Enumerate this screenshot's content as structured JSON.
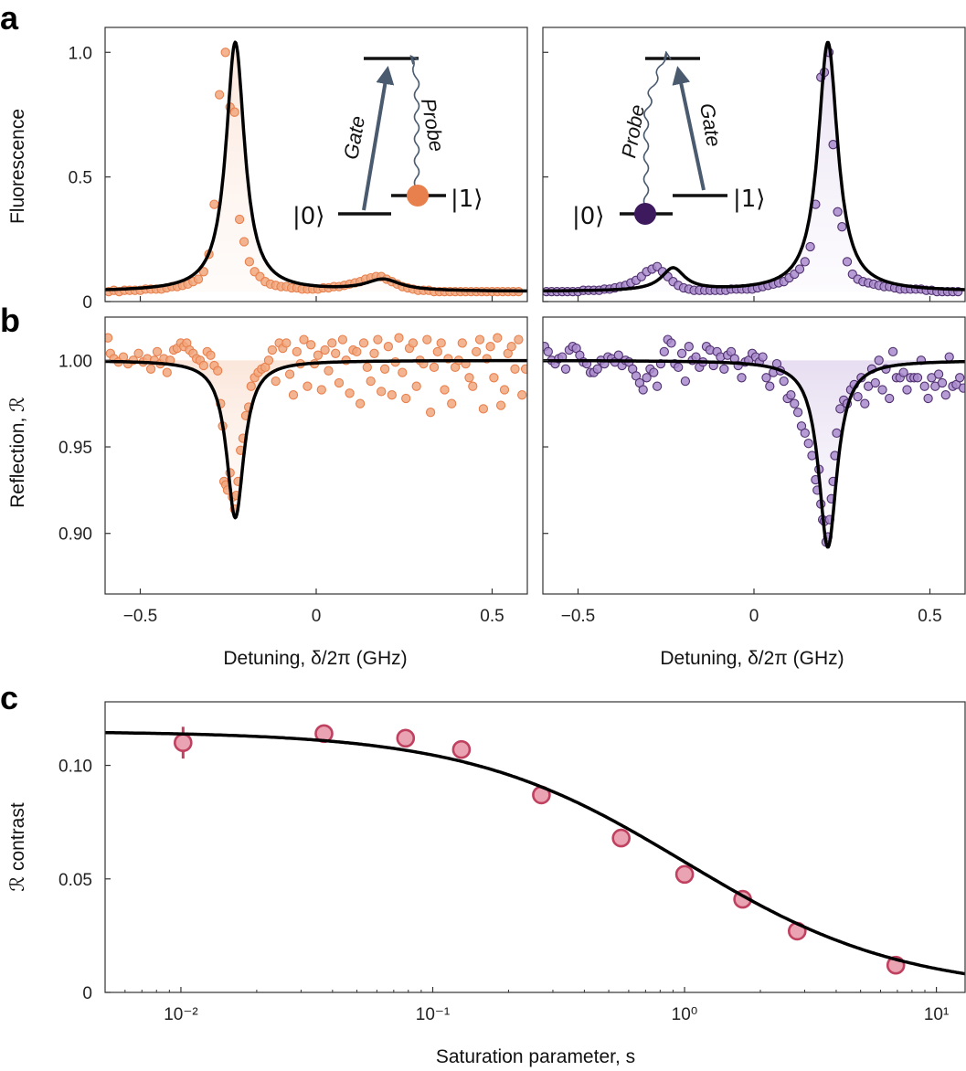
{
  "panels": {
    "a": "a",
    "b": "b",
    "c": "c"
  },
  "colors": {
    "orange": "#e8804e",
    "orange_fill": "#f1a77e",
    "purple": "#50306f",
    "purple_fill": "#a98bcc",
    "pink_edge": "#c0405f",
    "pink_fill": "#e9a3b3",
    "gate_arrow": "#4a5a6f"
  },
  "diagram_left": {
    "gate": "Gate",
    "probe": "Probe",
    "ket0": "|0⟩",
    "ket1": "|1⟩",
    "occupied": "1"
  },
  "diagram_right": {
    "gate": "Gate",
    "probe": "Probe",
    "ket0": "|0⟩",
    "ket1": "|1⟩",
    "occupied": "0"
  },
  "chart_data": [
    {
      "id": "a-left",
      "type": "scatter",
      "title": "",
      "xlabel": "",
      "ylabel": "Fluorescence",
      "xlim": [
        -0.6,
        0.6
      ],
      "ylim": [
        0,
        1.1
      ],
      "yticks": [
        0,
        0.5,
        1.0
      ],
      "ytick_labels": [
        "0",
        "0.5",
        "1.0"
      ],
      "fit": {
        "peaks": [
          {
            "x0": -0.23,
            "amp": 1.0,
            "hwhm": 0.032
          },
          {
            "x0": 0.19,
            "amp": 0.045,
            "hwhm": 0.06
          }
        ],
        "baseline": 0.04
      },
      "points": {
        "x": [
          -0.59,
          -0.575,
          -0.56,
          -0.545,
          -0.53,
          -0.515,
          -0.5,
          -0.485,
          -0.47,
          -0.455,
          -0.44,
          -0.425,
          -0.41,
          -0.395,
          -0.38,
          -0.365,
          -0.35,
          -0.335,
          -0.32,
          -0.305,
          -0.29,
          -0.275,
          -0.258,
          -0.245,
          -0.232,
          -0.218,
          -0.205,
          -0.19,
          -0.175,
          -0.16,
          -0.145,
          -0.13,
          -0.115,
          -0.1,
          -0.085,
          -0.07,
          -0.055,
          -0.04,
          -0.025,
          -0.01,
          0.005,
          0.02,
          0.035,
          0.05,
          0.065,
          0.08,
          0.095,
          0.11,
          0.125,
          0.14,
          0.155,
          0.17,
          0.185,
          0.2,
          0.215,
          0.23,
          0.245,
          0.26,
          0.275,
          0.29,
          0.305,
          0.32,
          0.335,
          0.35,
          0.365,
          0.38,
          0.395,
          0.41,
          0.425,
          0.44,
          0.455,
          0.47,
          0.485,
          0.5,
          0.515,
          0.53,
          0.545,
          0.56,
          0.575
        ],
        "y": [
          0.04,
          0.045,
          0.04,
          0.045,
          0.045,
          0.045,
          0.045,
          0.05,
          0.05,
          0.05,
          0.05,
          0.055,
          0.06,
          0.06,
          0.065,
          0.07,
          0.08,
          0.09,
          0.12,
          0.19,
          0.39,
          0.83,
          1.0,
          0.78,
          0.76,
          0.33,
          0.24,
          0.16,
          0.12,
          0.1,
          0.08,
          0.07,
          0.065,
          0.06,
          0.06,
          0.055,
          0.055,
          0.05,
          0.05,
          0.05,
          0.05,
          0.055,
          0.055,
          0.06,
          0.06,
          0.065,
          0.07,
          0.075,
          0.08,
          0.09,
          0.095,
          0.1,
          0.1,
          0.09,
          0.08,
          0.07,
          0.06,
          0.055,
          0.05,
          0.045,
          0.045,
          0.045,
          0.04,
          0.04,
          0.04,
          0.04,
          0.04,
          0.04,
          0.04,
          0.04,
          0.04,
          0.04,
          0.04,
          0.04,
          0.04,
          0.04,
          0.04,
          0.04,
          0.04
        ]
      }
    },
    {
      "id": "a-right",
      "type": "scatter",
      "title": "",
      "xlabel": "",
      "ylabel": "",
      "xlim": [
        -0.6,
        0.6
      ],
      "ylim": [
        0,
        1.1
      ],
      "yticks": [
        0,
        0.5,
        1.0
      ],
      "ytick_labels": [
        "",
        "",
        ""
      ],
      "fit": {
        "peaks": [
          {
            "x0": 0.21,
            "amp": 1.0,
            "hwhm": 0.034
          },
          {
            "x0": -0.23,
            "amp": 0.09,
            "hwhm": 0.04
          }
        ],
        "baseline": 0.04
      },
      "points": {
        "x": [
          -0.59,
          -0.575,
          -0.56,
          -0.545,
          -0.53,
          -0.515,
          -0.5,
          -0.485,
          -0.47,
          -0.455,
          -0.44,
          -0.425,
          -0.41,
          -0.395,
          -0.38,
          -0.365,
          -0.35,
          -0.335,
          -0.32,
          -0.305,
          -0.29,
          -0.275,
          -0.26,
          -0.245,
          -0.23,
          -0.215,
          -0.2,
          -0.185,
          -0.17,
          -0.155,
          -0.14,
          -0.125,
          -0.11,
          -0.095,
          -0.08,
          -0.065,
          -0.05,
          -0.035,
          -0.02,
          -0.005,
          0.01,
          0.025,
          0.04,
          0.055,
          0.07,
          0.085,
          0.1,
          0.115,
          0.13,
          0.145,
          0.16,
          0.175,
          0.19,
          0.2,
          0.213,
          0.225,
          0.238,
          0.25,
          0.265,
          0.28,
          0.295,
          0.31,
          0.325,
          0.34,
          0.355,
          0.37,
          0.385,
          0.4,
          0.415,
          0.43,
          0.445,
          0.46,
          0.475,
          0.49,
          0.505,
          0.52,
          0.535,
          0.55,
          0.565,
          0.58
        ],
        "y": [
          0.04,
          0.04,
          0.04,
          0.04,
          0.04,
          0.04,
          0.04,
          0.045,
          0.045,
          0.045,
          0.045,
          0.05,
          0.05,
          0.055,
          0.06,
          0.065,
          0.075,
          0.085,
          0.1,
          0.12,
          0.13,
          0.14,
          0.12,
          0.1,
          0.08,
          0.065,
          0.055,
          0.05,
          0.045,
          0.045,
          0.045,
          0.045,
          0.045,
          0.045,
          0.045,
          0.05,
          0.05,
          0.05,
          0.05,
          0.05,
          0.055,
          0.06,
          0.065,
          0.07,
          0.075,
          0.08,
          0.095,
          0.11,
          0.13,
          0.16,
          0.22,
          0.39,
          0.9,
          0.92,
          1.0,
          0.63,
          0.36,
          0.3,
          0.16,
          0.11,
          0.09,
          0.08,
          0.075,
          0.07,
          0.065,
          0.06,
          0.06,
          0.055,
          0.05,
          0.05,
          0.05,
          0.05,
          0.05,
          0.045,
          0.045,
          0.04,
          0.04,
          0.04,
          0.04,
          0.04
        ]
      }
    },
    {
      "id": "b-left",
      "type": "scatter",
      "title": "",
      "xlabel": "Detuning, δ/2π (GHz)",
      "ylabel": "Reflection, ℛ",
      "xlim": [
        -0.6,
        0.6
      ],
      "ylim": [
        0.865,
        1.025
      ],
      "xticks": [
        -0.5,
        0,
        0.5
      ],
      "xtick_labels": [
        "−0.5",
        "0",
        "0.5"
      ],
      "yticks": [
        0.9,
        0.95,
        1.0
      ],
      "ytick_labels": [
        "0.90",
        "0.95",
        "1.00"
      ],
      "fit": {
        "baseline": 1.0,
        "dips": [
          {
            "x0": -0.23,
            "depth": 0.091,
            "hwhm": 0.03
          }
        ]
      },
      "points": {
        "x": [
          -0.592,
          -0.585,
          -0.575,
          -0.562,
          -0.548,
          -0.535,
          -0.52,
          -0.505,
          -0.492,
          -0.48,
          -0.47,
          -0.46,
          -0.452,
          -0.443,
          -0.433,
          -0.424,
          -0.415,
          -0.405,
          -0.395,
          -0.385,
          -0.376,
          -0.368,
          -0.36,
          -0.35,
          -0.34,
          -0.33,
          -0.32,
          -0.31,
          -0.3,
          -0.29,
          -0.28,
          -0.272,
          -0.266,
          -0.262,
          -0.257,
          -0.252,
          -0.245,
          -0.238,
          -0.232,
          -0.227,
          -0.222,
          -0.215,
          -0.208,
          -0.2,
          -0.192,
          -0.185,
          -0.175,
          -0.165,
          -0.155,
          -0.145,
          -0.135,
          -0.125,
          -0.115,
          -0.105,
          -0.095,
          -0.085,
          -0.075,
          -0.065,
          -0.055,
          -0.045,
          -0.035,
          -0.025,
          -0.015,
          -0.005,
          0.005,
          0.015,
          0.025,
          0.035,
          0.045,
          0.055,
          0.065,
          0.075,
          0.085,
          0.095,
          0.105,
          0.115,
          0.125,
          0.135,
          0.145,
          0.155,
          0.165,
          0.175,
          0.185,
          0.195,
          0.205,
          0.215,
          0.225,
          0.235,
          0.245,
          0.255,
          0.265,
          0.275,
          0.285,
          0.295,
          0.305,
          0.315,
          0.325,
          0.335,
          0.345,
          0.355,
          0.365,
          0.375,
          0.385,
          0.395,
          0.405,
          0.415,
          0.425,
          0.435,
          0.445,
          0.455,
          0.465,
          0.475,
          0.485,
          0.495,
          0.505,
          0.515,
          0.525,
          0.535,
          0.545,
          0.555,
          0.565,
          0.575,
          0.585,
          0.595
        ],
        "y": [
          1.013,
          1.004,
          1.001,
          0.999,
          1.002,
          0.998,
          1.0,
          1.004,
          0.999,
          1.001,
          0.995,
          1.0,
          1.005,
          0.998,
          1.001,
          0.993,
          1.0,
          1.006,
          1.007,
          1.01,
          1.008,
          1.01,
          1.006,
          1.004,
          1.001,
          1.0,
          0.997,
          1.005,
          1.003,
          0.997,
          0.994,
          0.975,
          0.962,
          0.93,
          0.928,
          0.925,
          0.935,
          0.921,
          0.914,
          0.922,
          0.93,
          0.948,
          0.955,
          0.968,
          0.973,
          0.985,
          0.99,
          0.993,
          0.995,
          0.996,
          1.0,
          1.006,
          0.988,
          1.01,
          1.007,
          1.01,
          0.992,
          0.98,
          1.005,
          0.998,
          1.012,
          0.985,
          1.009,
          0.998,
          1.003,
          0.983,
          1.006,
          0.994,
          1.01,
          1.004,
          0.987,
          1.012,
          1.0,
          0.981,
          1.006,
          1.005,
          0.975,
          1.01,
          0.996,
          0.988,
          1.004,
          1.012,
          0.982,
          0.995,
          1.008,
          0.98,
          0.999,
          1.013,
          0.993,
          0.978,
          1.007,
          1.01,
          0.985,
          1.0,
          0.998,
          1.012,
          0.97,
          0.996,
          1.005,
          1.01,
          0.983,
          1.001,
          0.975,
          0.996,
          1.0,
          1.01,
          0.998,
          0.99,
          0.985,
          1.005,
          1.012,
          0.972,
          1.001,
          1.008,
          0.99,
          1.013,
          0.974,
          0.983,
          1.004,
          1.008,
          0.995,
          1.012,
          0.98,
          0.995
        ]
      }
    },
    {
      "id": "b-right",
      "type": "scatter",
      "title": "",
      "xlabel": "Detuning, δ/2π (GHz)",
      "ylabel": "",
      "xlim": [
        -0.6,
        0.6
      ],
      "ylim": [
        0.865,
        1.025
      ],
      "xticks": [
        -0.5,
        0,
        0.5
      ],
      "xtick_labels": [
        "−0.5",
        "0",
        "0.5"
      ],
      "yticks": [
        0.9,
        0.95,
        1.0
      ],
      "ytick_labels": [
        "",
        "",
        ""
      ],
      "fit": {
        "baseline": 1.0,
        "dips": [
          {
            "x0": 0.21,
            "depth": 0.108,
            "hwhm": 0.032
          }
        ]
      },
      "points": {
        "x": [
          -0.595,
          -0.585,
          -0.575,
          -0.565,
          -0.555,
          -0.545,
          -0.535,
          -0.525,
          -0.515,
          -0.505,
          -0.495,
          -0.485,
          -0.475,
          -0.465,
          -0.455,
          -0.445,
          -0.435,
          -0.425,
          -0.415,
          -0.405,
          -0.395,
          -0.385,
          -0.375,
          -0.365,
          -0.355,
          -0.345,
          -0.335,
          -0.325,
          -0.315,
          -0.305,
          -0.295,
          -0.285,
          -0.275,
          -0.265,
          -0.255,
          -0.245,
          -0.235,
          -0.225,
          -0.215,
          -0.205,
          -0.195,
          -0.185,
          -0.175,
          -0.165,
          -0.155,
          -0.145,
          -0.135,
          -0.125,
          -0.115,
          -0.105,
          -0.095,
          -0.085,
          -0.075,
          -0.065,
          -0.055,
          -0.045,
          -0.035,
          -0.025,
          -0.015,
          -0.005,
          0.005,
          0.015,
          0.025,
          0.035,
          0.045,
          0.055,
          0.065,
          0.075,
          0.085,
          0.095,
          0.105,
          0.115,
          0.125,
          0.135,
          0.145,
          0.155,
          0.165,
          0.175,
          0.18,
          0.185,
          0.19,
          0.195,
          0.2,
          0.205,
          0.21,
          0.215,
          0.22,
          0.225,
          0.23,
          0.235,
          0.245,
          0.255,
          0.265,
          0.275,
          0.285,
          0.295,
          0.305,
          0.315,
          0.325,
          0.335,
          0.345,
          0.355,
          0.365,
          0.375,
          0.385,
          0.395,
          0.405,
          0.415,
          0.425,
          0.435,
          0.445,
          0.455,
          0.465,
          0.475,
          0.485,
          0.495,
          0.505,
          0.515,
          0.525,
          0.535,
          0.545,
          0.555,
          0.565,
          0.575,
          0.585,
          0.595
        ],
        "y": [
          1.008,
          1.005,
          1.0,
          0.998,
          1.001,
          1.002,
          0.995,
          1.006,
          1.008,
          1.007,
          1.003,
          0.999,
          0.998,
          0.993,
          0.993,
          0.995,
          1.0,
          0.998,
          1.002,
          1.001,
          0.999,
          1.003,
          0.997,
          1.0,
          0.999,
          0.995,
          0.991,
          0.987,
          0.983,
          0.99,
          0.995,
          0.993,
          0.985,
          0.998,
          1.005,
          1.012,
          1.01,
          0.998,
          0.996,
          1.004,
          0.988,
          1.008,
          1.0,
          1.002,
          0.996,
          0.999,
          1.008,
          1.006,
          0.997,
          1.005,
          1.002,
          0.995,
          1.003,
          1.005,
          1.001,
          0.997,
          0.99,
          0.999,
          1.0,
          1.004,
          1.002,
          0.999,
          1.002,
          0.99,
          0.985,
          0.993,
          0.998,
          0.994,
          0.988,
          0.978,
          0.98,
          0.975,
          0.97,
          0.962,
          0.958,
          0.952,
          0.945,
          0.931,
          0.925,
          0.937,
          0.917,
          0.908,
          0.907,
          0.895,
          0.898,
          0.908,
          0.92,
          0.93,
          0.945,
          0.958,
          0.972,
          0.977,
          0.975,
          0.983,
          0.986,
          0.979,
          0.99,
          0.975,
          0.985,
          0.995,
          0.987,
          1.0,
          0.983,
          0.995,
          0.978,
          1.005,
          0.99,
          0.99,
          0.993,
          0.983,
          0.99,
          0.99,
          0.99,
          1.0,
          0.985,
          0.978,
          0.99,
          0.985,
          0.992,
          0.987,
          0.98,
          1.002,
          0.985,
          0.986,
          0.99,
          0.984
        ]
      }
    },
    {
      "id": "c",
      "type": "scatter",
      "title": "",
      "xlabel": "Saturation parameter, s",
      "ylabel": "ℛ contrast",
      "xscale": "log",
      "xlim": [
        0.005,
        13
      ],
      "ylim": [
        0,
        0.128
      ],
      "xticks": [
        0.01,
        0.1,
        1,
        10
      ],
      "xtick_labels": [
        "10⁻²",
        "10⁻¹",
        "10⁰",
        "10¹"
      ],
      "yticks": [
        0,
        0.05,
        0.1
      ],
      "ytick_labels": [
        "0",
        "0.05",
        "0.10"
      ],
      "fit": {
        "a": 0.115,
        "s0": 1.0
      },
      "points": {
        "x": [
          0.0102,
          0.037,
          0.078,
          0.13,
          0.27,
          0.56,
          1.0,
          1.7,
          2.8,
          6.9
        ],
        "y": [
          0.11,
          0.114,
          0.112,
          0.107,
          0.087,
          0.068,
          0.052,
          0.041,
          0.027,
          0.012
        ],
        "yerr": [
          0.007,
          0,
          0,
          0,
          0,
          0,
          0,
          0,
          0,
          0
        ]
      }
    }
  ]
}
